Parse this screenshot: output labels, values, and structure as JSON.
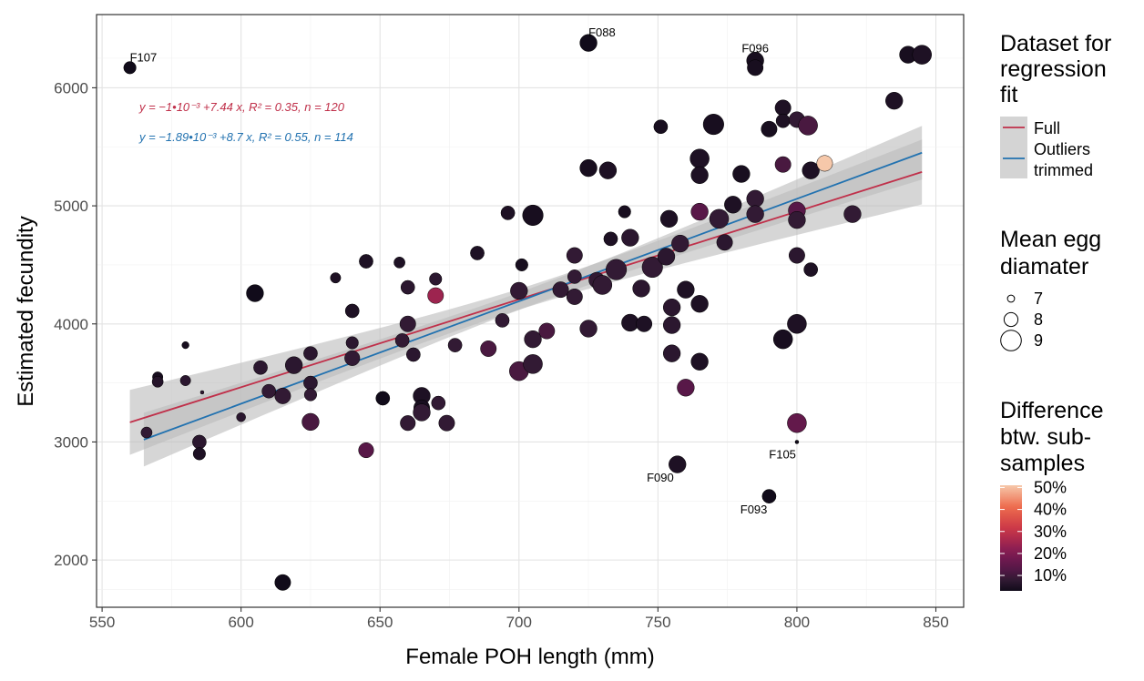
{
  "chart_data": {
    "type": "scatter",
    "xlabel": "Female POH length (mm)",
    "ylabel": "Estimated fecundity",
    "xlim": [
      548,
      860
    ],
    "ylim": [
      1600,
      6620
    ],
    "x_ticks": [
      550,
      600,
      650,
      700,
      750,
      800,
      850
    ],
    "y_ticks": [
      2000,
      3000,
      4000,
      5000,
      6000
    ],
    "grid": true,
    "legend_placement": "right",
    "colors": {
      "full_line": "#c0304a",
      "trimmed_line": "#2272b0",
      "ribbon": "#bdbdbd"
    },
    "equations": [
      {
        "text": "y = −1•10⁻³ +7.44 x, R² = 0.35, n = 120",
        "color": "#c0304a"
      },
      {
        "text": "y = −1.89•10⁻³ +8.7 x, R² = 0.55, n = 114",
        "color": "#2272b0"
      }
    ],
    "series": [
      {
        "name": "Full",
        "x": [
          560,
          845
        ],
        "y": [
          3166,
          5287
        ],
        "ci_lower": [
          2900,
          5020
        ],
        "ci_upper": [
          3470,
          5550
        ]
      },
      {
        "name": "Outliers trimmed",
        "x": [
          565,
          845
        ],
        "y": [
          3020,
          5450
        ],
        "ci_lower": [
          2790,
          5230
        ],
        "ci_upper": [
          3250,
          5680
        ]
      }
    ],
    "points": [
      {
        "x": 560,
        "y": 6170,
        "s": 7.8,
        "d": 3
      },
      {
        "x": 566,
        "y": 3080,
        "s": 7.6,
        "d": 8
      },
      {
        "x": 570,
        "y": 3550,
        "s": 7.5,
        "d": 4
      },
      {
        "x": 570,
        "y": 3510,
        "s": 7.6,
        "d": 6
      },
      {
        "x": 580,
        "y": 3820,
        "s": 7.0,
        "d": 4
      },
      {
        "x": 580,
        "y": 3520,
        "s": 7.5,
        "d": 7
      },
      {
        "x": 585,
        "y": 3000,
        "s": 8.0,
        "d": 7
      },
      {
        "x": 585,
        "y": 2900,
        "s": 7.8,
        "d": 5
      },
      {
        "x": 586,
        "y": 3420,
        "s": 6.5,
        "d": 8
      },
      {
        "x": 600,
        "y": 3210,
        "s": 7.3,
        "d": 7
      },
      {
        "x": 605,
        "y": 4260,
        "s": 8.5,
        "d": 3
      },
      {
        "x": 607,
        "y": 3630,
        "s": 8.0,
        "d": 7
      },
      {
        "x": 610,
        "y": 3430,
        "s": 8.0,
        "d": 8
      },
      {
        "x": 615,
        "y": 3390,
        "s": 8.3,
        "d": 8
      },
      {
        "x": 615,
        "y": 1810,
        "s": 8.3,
        "d": 3
      },
      {
        "x": 619,
        "y": 3650,
        "s": 8.5,
        "d": 7
      },
      {
        "x": 625,
        "y": 3750,
        "s": 8.0,
        "d": 7
      },
      {
        "x": 625,
        "y": 3500,
        "s": 8.0,
        "d": 7
      },
      {
        "x": 625,
        "y": 3400,
        "s": 7.8,
        "d": 8
      },
      {
        "x": 625,
        "y": 3170,
        "s": 8.5,
        "d": 11
      },
      {
        "x": 634,
        "y": 4390,
        "s": 7.5,
        "d": 5
      },
      {
        "x": 640,
        "y": 4110,
        "s": 8.0,
        "d": 5
      },
      {
        "x": 640,
        "y": 3840,
        "s": 7.8,
        "d": 7
      },
      {
        "x": 640,
        "y": 3710,
        "s": 8.2,
        "d": 8
      },
      {
        "x": 645,
        "y": 4530,
        "s": 8.0,
        "d": 5
      },
      {
        "x": 645,
        "y": 2930,
        "s": 8.2,
        "d": 13
      },
      {
        "x": 651,
        "y": 3370,
        "s": 8.0,
        "d": 3
      },
      {
        "x": 657,
        "y": 4520,
        "s": 7.6,
        "d": 5
      },
      {
        "x": 658,
        "y": 3860,
        "s": 8.0,
        "d": 8
      },
      {
        "x": 660,
        "y": 4310,
        "s": 8.0,
        "d": 7
      },
      {
        "x": 660,
        "y": 4000,
        "s": 8.3,
        "d": 8
      },
      {
        "x": 660,
        "y": 3160,
        "s": 8.2,
        "d": 8
      },
      {
        "x": 662,
        "y": 3740,
        "s": 8.0,
        "d": 7
      },
      {
        "x": 665,
        "y": 3390,
        "s": 8.5,
        "d": 5
      },
      {
        "x": 665,
        "y": 3290,
        "s": 8.3,
        "d": 4
      },
      {
        "x": 665,
        "y": 3250,
        "s": 8.5,
        "d": 8
      },
      {
        "x": 670,
        "y": 4380,
        "s": 7.8,
        "d": 7
      },
      {
        "x": 670,
        "y": 4240,
        "s": 8.3,
        "d": 24
      },
      {
        "x": 671,
        "y": 3330,
        "s": 8.0,
        "d": 8
      },
      {
        "x": 674,
        "y": 3160,
        "s": 8.3,
        "d": 8
      },
      {
        "x": 677,
        "y": 3820,
        "s": 8.0,
        "d": 8
      },
      {
        "x": 685,
        "y": 4600,
        "s": 8.0,
        "d": 5
      },
      {
        "x": 689,
        "y": 3790,
        "s": 8.3,
        "d": 11
      },
      {
        "x": 694,
        "y": 4030,
        "s": 8.0,
        "d": 8
      },
      {
        "x": 696,
        "y": 4940,
        "s": 8.0,
        "d": 5
      },
      {
        "x": 700,
        "y": 4280,
        "s": 8.5,
        "d": 8
      },
      {
        "x": 700,
        "y": 3600,
        "s": 8.8,
        "d": 11
      },
      {
        "x": 701,
        "y": 4500,
        "s": 7.8,
        "d": 4
      },
      {
        "x": 705,
        "y": 4920,
        "s": 9.0,
        "d": 4
      },
      {
        "x": 705,
        "y": 3870,
        "s": 8.5,
        "d": 8
      },
      {
        "x": 705,
        "y": 3660,
        "s": 8.8,
        "d": 8
      },
      {
        "x": 710,
        "y": 3940,
        "s": 8.3,
        "d": 11
      },
      {
        "x": 715,
        "y": 4290,
        "s": 8.3,
        "d": 8
      },
      {
        "x": 720,
        "y": 4580,
        "s": 8.3,
        "d": 8
      },
      {
        "x": 720,
        "y": 4400,
        "s": 8.0,
        "d": 8
      },
      {
        "x": 720,
        "y": 4230,
        "s": 8.3,
        "d": 8
      },
      {
        "x": 725,
        "y": 6380,
        "s": 8.5,
        "d": 3
      },
      {
        "x": 725,
        "y": 5320,
        "s": 8.5,
        "d": 4
      },
      {
        "x": 725,
        "y": 3960,
        "s": 8.5,
        "d": 8
      },
      {
        "x": 728,
        "y": 4370,
        "s": 8.3,
        "d": 8
      },
      {
        "x": 730,
        "y": 4330,
        "s": 8.8,
        "d": 8
      },
      {
        "x": 732,
        "y": 5300,
        "s": 8.5,
        "d": 5
      },
      {
        "x": 733,
        "y": 4720,
        "s": 8.0,
        "d": 5
      },
      {
        "x": 735,
        "y": 4460,
        "s": 9.0,
        "d": 8
      },
      {
        "x": 738,
        "y": 4950,
        "s": 7.8,
        "d": 4
      },
      {
        "x": 740,
        "y": 4730,
        "s": 8.5,
        "d": 7
      },
      {
        "x": 740,
        "y": 4010,
        "s": 8.5,
        "d": 5
      },
      {
        "x": 744,
        "y": 4300,
        "s": 8.5,
        "d": 7
      },
      {
        "x": 745,
        "y": 4000,
        "s": 8.3,
        "d": 5
      },
      {
        "x": 748,
        "y": 4480,
        "s": 9.0,
        "d": 8
      },
      {
        "x": 751,
        "y": 5670,
        "s": 8.0,
        "d": 4
      },
      {
        "x": 753,
        "y": 4570,
        "s": 8.5,
        "d": 7
      },
      {
        "x": 754,
        "y": 4890,
        "s": 8.5,
        "d": 5
      },
      {
        "x": 755,
        "y": 4140,
        "s": 8.5,
        "d": 7
      },
      {
        "x": 755,
        "y": 3990,
        "s": 8.5,
        "d": 7
      },
      {
        "x": 755,
        "y": 3750,
        "s": 8.5,
        "d": 7
      },
      {
        "x": 757,
        "y": 2810,
        "s": 8.5,
        "d": 5
      },
      {
        "x": 758,
        "y": 4680,
        "s": 8.5,
        "d": 8
      },
      {
        "x": 760,
        "y": 4290,
        "s": 8.5,
        "d": 5
      },
      {
        "x": 760,
        "y": 3460,
        "s": 8.5,
        "d": 13
      },
      {
        "x": 765,
        "y": 5400,
        "s": 8.8,
        "d": 5
      },
      {
        "x": 765,
        "y": 5260,
        "s": 8.5,
        "d": 5
      },
      {
        "x": 765,
        "y": 4950,
        "s": 8.5,
        "d": 13
      },
      {
        "x": 765,
        "y": 4170,
        "s": 8.5,
        "d": 5
      },
      {
        "x": 765,
        "y": 3680,
        "s": 8.5,
        "d": 5
      },
      {
        "x": 770,
        "y": 5690,
        "s": 9.0,
        "d": 4
      },
      {
        "x": 772,
        "y": 4890,
        "s": 8.8,
        "d": 8
      },
      {
        "x": 774,
        "y": 4690,
        "s": 8.3,
        "d": 7
      },
      {
        "x": 777,
        "y": 5010,
        "s": 8.5,
        "d": 5
      },
      {
        "x": 780,
        "y": 5270,
        "s": 8.5,
        "d": 4
      },
      {
        "x": 785,
        "y": 6230,
        "s": 8.5,
        "d": 4
      },
      {
        "x": 785,
        "y": 6170,
        "s": 8.3,
        "d": 4
      },
      {
        "x": 785,
        "y": 5060,
        "s": 8.5,
        "d": 8
      },
      {
        "x": 785,
        "y": 4930,
        "s": 8.5,
        "d": 8
      },
      {
        "x": 790,
        "y": 5650,
        "s": 8.3,
        "d": 4
      },
      {
        "x": 790,
        "y": 2540,
        "s": 8.0,
        "d": 3
      },
      {
        "x": 795,
        "y": 5830,
        "s": 8.3,
        "d": 5
      },
      {
        "x": 795,
        "y": 5720,
        "s": 8.0,
        "d": 5
      },
      {
        "x": 795,
        "y": 5350,
        "s": 8.3,
        "d": 11
      },
      {
        "x": 795,
        "y": 3870,
        "s": 8.8,
        "d": 4
      },
      {
        "x": 800,
        "y": 5730,
        "s": 8.3,
        "d": 8
      },
      {
        "x": 800,
        "y": 4960,
        "s": 8.5,
        "d": 13
      },
      {
        "x": 800,
        "y": 4880,
        "s": 8.5,
        "d": 8
      },
      {
        "x": 800,
        "y": 4580,
        "s": 8.3,
        "d": 7
      },
      {
        "x": 800,
        "y": 4000,
        "s": 8.8,
        "d": 5
      },
      {
        "x": 800,
        "y": 3160,
        "s": 8.8,
        "d": 15
      },
      {
        "x": 804,
        "y": 5680,
        "s": 8.8,
        "d": 11
      },
      {
        "x": 805,
        "y": 5300,
        "s": 8.5,
        "d": 5
      },
      {
        "x": 805,
        "y": 4460,
        "s": 8.0,
        "d": 5
      },
      {
        "x": 810,
        "y": 5360,
        "s": 8.3,
        "d": 50
      },
      {
        "x": 820,
        "y": 4930,
        "s": 8.5,
        "d": 8
      },
      {
        "x": 835,
        "y": 5890,
        "s": 8.5,
        "d": 5
      },
      {
        "x": 840,
        "y": 6280,
        "s": 8.5,
        "d": 4
      },
      {
        "x": 845,
        "y": 6280,
        "s": 8.8,
        "d": 5
      },
      {
        "x": 800,
        "y": 3000,
        "s": 6.5,
        "d": 3
      }
    ],
    "annotations": [
      {
        "text": "F107",
        "x": 560,
        "y": 6170
      },
      {
        "text": "F088",
        "x": 725,
        "y": 6380
      },
      {
        "text": "F096",
        "x": 785,
        "y": 6230
      },
      {
        "text": "F105",
        "x": 800,
        "y": 3000
      },
      {
        "text": "F090",
        "x": 757,
        "y": 2810
      },
      {
        "text": "F093",
        "x": 790,
        "y": 2540
      }
    ],
    "legends": [
      {
        "title": [
          "Dataset for",
          "regression",
          "fit"
        ],
        "entries": [
          "Full",
          "Outliers",
          "trimmed"
        ]
      },
      {
        "title": [
          "Mean egg",
          "diamater"
        ],
        "entries": [
          "7",
          "8",
          "9"
        ]
      },
      {
        "title": [
          "Difference",
          "btw. sub-",
          "samples"
        ],
        "entries": [
          "50%",
          "40%",
          "30%",
          "20%",
          "10%"
        ]
      }
    ]
  }
}
